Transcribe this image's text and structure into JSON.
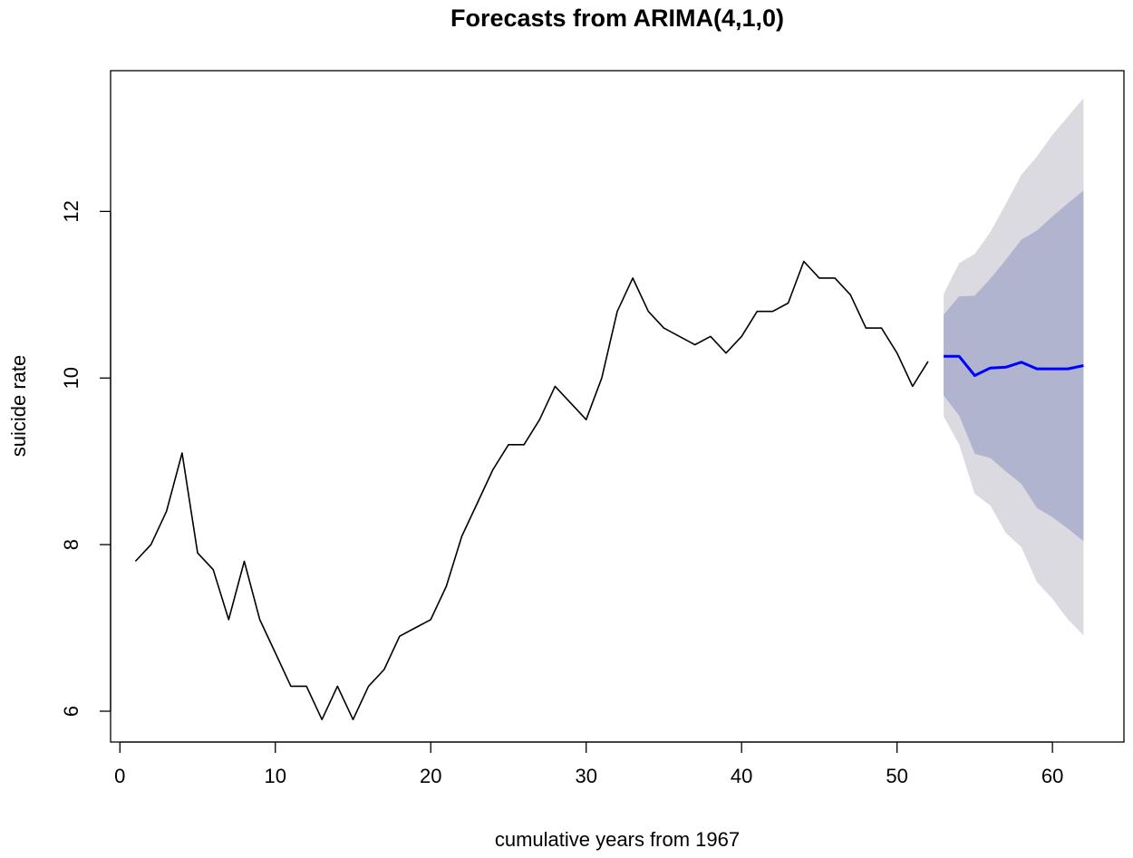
{
  "chart_data": {
    "type": "line",
    "title": "Forecasts from ARIMA(4,1,0)",
    "xlabel": "cumulative years from 1967",
    "ylabel": "suicide rate",
    "xlim": [
      -0.6,
      64.6
    ],
    "ylim": [
      5.63,
      13.69
    ],
    "x_ticks": [
      0,
      10,
      20,
      30,
      40,
      50,
      60
    ],
    "y_ticks": [
      6,
      8,
      10,
      12
    ],
    "grid": false,
    "legend": "none",
    "colors": {
      "history": "#000000",
      "forecast": "#0000ff",
      "band80": "#b0b4cf",
      "band95": "#dadae0"
    },
    "history": {
      "x": [
        1,
        2,
        3,
        4,
        5,
        6,
        7,
        8,
        9,
        10,
        11,
        12,
        13,
        14,
        15,
        16,
        17,
        18,
        19,
        20,
        21,
        22,
        23,
        24,
        25,
        26,
        27,
        28,
        29,
        30,
        31,
        32,
        33,
        34,
        35,
        36,
        37,
        38,
        39,
        40,
        41,
        42,
        43,
        44,
        45,
        46,
        47,
        48,
        49,
        50,
        51,
        52
      ],
      "y": [
        7.8,
        8.0,
        8.4,
        9.1,
        7.9,
        7.7,
        7.1,
        7.8,
        7.1,
        6.7,
        6.3,
        6.3,
        5.9,
        6.3,
        5.9,
        6.3,
        6.5,
        6.9,
        7.0,
        7.1,
        7.5,
        8.1,
        8.5,
        8.9,
        9.2,
        9.2,
        9.5,
        9.9,
        9.7,
        9.5,
        10.0,
        10.8,
        11.2,
        10.8,
        10.6,
        10.5,
        10.4,
        10.5,
        10.3,
        10.5,
        10.8,
        10.8,
        10.9,
        11.4,
        11.2,
        11.2,
        11.0,
        10.6,
        10.6,
        10.3,
        9.9,
        10.2
      ]
    },
    "forecast": {
      "x": [
        53,
        54,
        55,
        56,
        57,
        58,
        59,
        60,
        61,
        62
      ],
      "mean": [
        10.26,
        10.26,
        10.03,
        10.12,
        10.13,
        10.19,
        10.11,
        10.11,
        10.11,
        10.15
      ],
      "lo80": [
        9.79,
        9.55,
        9.09,
        9.04,
        8.88,
        8.73,
        8.44,
        8.33,
        8.19,
        8.04
      ],
      "hi80": [
        10.76,
        10.98,
        10.99,
        11.19,
        11.42,
        11.66,
        11.77,
        11.94,
        12.1,
        12.25
      ],
      "lo95": [
        9.54,
        9.2,
        8.61,
        8.47,
        8.14,
        7.97,
        7.55,
        7.35,
        7.1,
        6.91
      ],
      "hi95": [
        11.01,
        11.38,
        11.49,
        11.75,
        12.09,
        12.44,
        12.66,
        12.92,
        13.14,
        13.36
      ]
    }
  }
}
